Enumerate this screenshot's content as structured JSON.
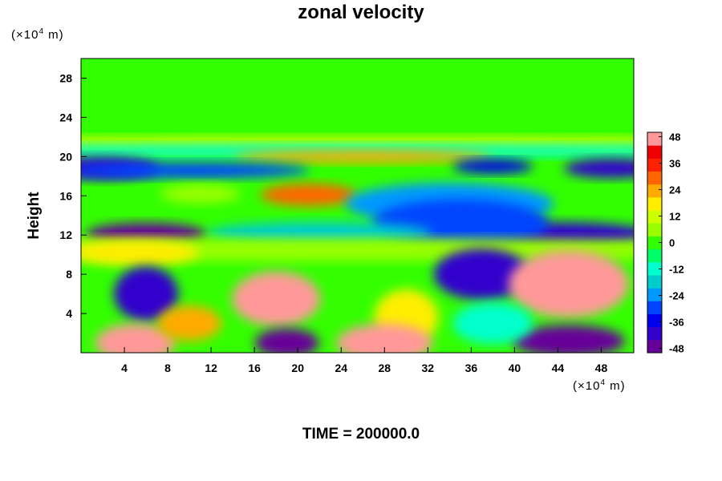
{
  "figure": {
    "title": "zonal velocity",
    "x_units": "(×10",
    "x_units_exp": "4",
    "x_units_suffix": " m)",
    "y_units": "(×10",
    "y_units_exp": "4",
    "y_units_suffix": " m)",
    "ylabel": "Height",
    "time_label": "TIME = 200000.0"
  },
  "chart_data": {
    "type": "heatmap",
    "title": "zonal velocity",
    "xlabel": "",
    "ylabel": "Height",
    "x_ticks": [
      4,
      8,
      12,
      16,
      20,
      24,
      28,
      32,
      36,
      40,
      44,
      48
    ],
    "y_ticks": [
      4,
      8,
      12,
      16,
      20,
      24,
      28
    ],
    "xlim": [
      0,
      51
    ],
    "ylim": [
      0,
      30
    ],
    "colorbar": {
      "ticks": [
        48,
        36,
        24,
        12,
        0,
        -12,
        -24,
        -36,
        -48
      ],
      "range": [
        -50,
        50
      ],
      "colors": [
        "#660099",
        "#3300cc",
        "#0000ee",
        "#0044ff",
        "#0099ff",
        "#00cccc",
        "#00ffcc",
        "#00ff66",
        "#33ff00",
        "#99ff00",
        "#ccff00",
        "#ffee00",
        "#ffaa00",
        "#ff6600",
        "#ff2200",
        "#ee0000",
        "#ff9999"
      ]
    },
    "features": [
      {
        "x": 0,
        "y": 30,
        "value": 0,
        "shape": "background"
      },
      {
        "x": 25,
        "y": 27,
        "value": 2
      },
      {
        "x": 25,
        "y": 21.3,
        "value": 10
      },
      {
        "x": 25,
        "y": 20.6,
        "value": -12
      },
      {
        "x": 26,
        "y": 20,
        "value": 24
      },
      {
        "x": 2,
        "y": 18.8,
        "value": -40
      },
      {
        "x": 10,
        "y": 18.6,
        "value": -28
      },
      {
        "x": 49,
        "y": 18.8,
        "value": -44
      },
      {
        "x": 38,
        "y": 19,
        "value": -38
      },
      {
        "x": 21,
        "y": 16.1,
        "value": 28
      },
      {
        "x": 11,
        "y": 16.2,
        "value": 8
      },
      {
        "x": 34,
        "y": 15.2,
        "value": -24
      },
      {
        "x": 6,
        "y": 12.1,
        "value": -46
      },
      {
        "x": 44,
        "y": 12,
        "value": -42
      },
      {
        "x": 35,
        "y": 13.2,
        "value": -30
      },
      {
        "x": 22,
        "y": 12.2,
        "value": -16
      },
      {
        "x": 23,
        "y": 10.5,
        "value": 8
      },
      {
        "x": 5,
        "y": 10.2,
        "value": 20
      },
      {
        "x": 37,
        "y": 8,
        "value": -44
      },
      {
        "x": 6,
        "y": 6,
        "value": -40
      },
      {
        "x": 18,
        "y": 5.5,
        "value": 48
      },
      {
        "x": 45,
        "y": 7,
        "value": 48
      },
      {
        "x": 30,
        "y": 3.6,
        "value": 18
      },
      {
        "x": 28,
        "y": 1,
        "value": 48
      },
      {
        "x": 5,
        "y": 1,
        "value": 48
      },
      {
        "x": 19,
        "y": 1,
        "value": -46
      },
      {
        "x": 45,
        "y": 1.2,
        "value": -46
      },
      {
        "x": 10,
        "y": 3,
        "value": 26
      },
      {
        "x": 38,
        "y": 3,
        "value": -14
      }
    ]
  }
}
